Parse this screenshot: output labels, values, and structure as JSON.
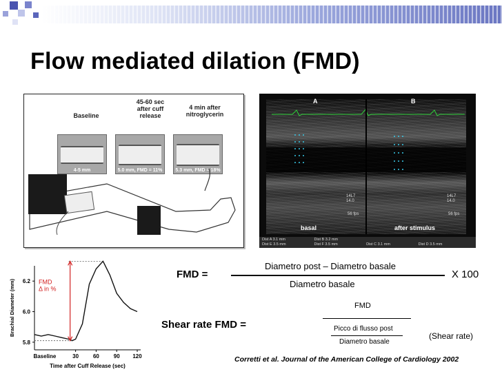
{
  "slide": {
    "title": "Flow mediated dilation (FMD)",
    "citation": "Corretti et al. Journal of the American College of Cardiology 2002"
  },
  "illustration": {
    "panels": [
      {
        "label": "Baseline",
        "caption": "4-5 mm"
      },
      {
        "label": "45-60 sec\nafter cuff\nrelease",
        "caption": "5.0 mm, FMD = 11%"
      },
      {
        "label": "4 min after\nnitroglycerin",
        "caption": "5.3 mm, FMD = 18%"
      }
    ]
  },
  "ultrasound": {
    "panel_a": "A",
    "panel_b": "B",
    "label_basal": "basal",
    "label_after": "after stimulus",
    "readout_a": "14L7\n14.0",
    "readout_b": "14L7\n14.0",
    "fps_a": "56 fps",
    "fps_b": "56 fps",
    "footer": [
      {
        "row1": "Dist A   3.1 mm",
        "row2": "Dist E   3.5 mm"
      },
      {
        "row1": "Dist B   3.2 mm",
        "row2": "Dist F   3.5 mm"
      },
      {
        "row1": "Dist C   3.1 mm",
        "row2": ""
      },
      {
        "row1": "Dist D   3.5 mm",
        "row2": ""
      }
    ]
  },
  "formulas": {
    "fmd_label": "FMD =",
    "fmd_numerator": "Diametro post – Diametro basale",
    "fmd_denominator": "Diametro basale",
    "fmd_multiplier": "X 100",
    "shear_label": "Shear rate FMD =",
    "shear_top": "FMD",
    "shear_numerator": "Picco di flusso post",
    "shear_denominator": "Diametro basale",
    "shear_note": "(Shear rate)"
  },
  "chart_data": {
    "type": "line",
    "xlabel": "Time after Cuff Release (sec)",
    "ylabel": "Brachial Diameter (mm)",
    "xticks": [
      "Baseline",
      "30",
      "60",
      "90",
      "120"
    ],
    "yticks": [
      "5.8",
      "6.0",
      "6.2"
    ],
    "ylim": [
      5.75,
      6.3
    ],
    "annotation": "FMD\nΔ in %",
    "series": [
      {
        "x": [
          -30,
          -20,
          -10,
          0,
          10,
          20,
          25,
          30,
          40,
          50,
          60,
          70,
          80,
          90,
          100,
          110,
          120
        ],
        "y": [
          5.85,
          5.84,
          5.85,
          5.84,
          5.83,
          5.82,
          5.81,
          5.82,
          5.92,
          6.18,
          6.28,
          6.33,
          6.24,
          6.12,
          6.06,
          6.02,
          6.0
        ]
      }
    ],
    "colors": {
      "line": "#111111",
      "annotation": "#d21f1f"
    }
  }
}
